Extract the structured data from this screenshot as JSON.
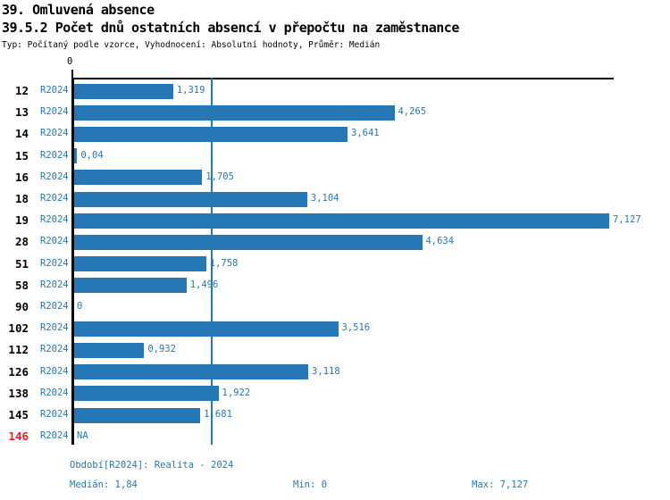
{
  "header": {
    "title1": "39. Omluvená absence",
    "title2": "39.5.2 Počet dnů ostatních absencí v přepočtu na zaměstnance",
    "subtitle": "Typ: Počítaný podle vzorce, Vyhodnocení: Absolutní hodnoty, Průměr: Medián"
  },
  "axis": {
    "zero_label": "0"
  },
  "chart_data": {
    "type": "bar",
    "orientation": "horizontal",
    "categories": [
      "12",
      "13",
      "14",
      "15",
      "16",
      "18",
      "19",
      "28",
      "51",
      "58",
      "90",
      "102",
      "112",
      "126",
      "138",
      "145",
      "146"
    ],
    "series": [
      {
        "name": "R2024",
        "values": [
          1.319,
          4.265,
          3.641,
          0.04,
          1.705,
          3.104,
          7.127,
          4.634,
          1.758,
          1.496,
          0,
          3.516,
          0.932,
          3.118,
          1.922,
          1.681,
          null
        ]
      }
    ],
    "value_labels": [
      "1,319",
      "4,265",
      "3,641",
      "0,04",
      "1,705",
      "3,104",
      "7,127",
      "4,634",
      "1,758",
      "1,496",
      "0",
      "3,516",
      "0,932",
      "3,118",
      "1,922",
      "1,681",
      "NA"
    ],
    "period_label": "R2024",
    "xlim": [
      0,
      7.19
    ],
    "grid": false,
    "median": 1.84,
    "min": 0,
    "max": 7.127,
    "highlight_category": "146",
    "colors": {
      "bar": "#2577b5",
      "text_blue": "#2577b5",
      "row_number": "#000000",
      "highlight_red": "#ed1c24",
      "axis": "#000000"
    }
  },
  "footer": {
    "period_line": "Období[R2024]: Realita - 2024",
    "median_label": "Medián: 1,84",
    "min_label": "Min: 0",
    "max_label": "Max: 7,127"
  }
}
